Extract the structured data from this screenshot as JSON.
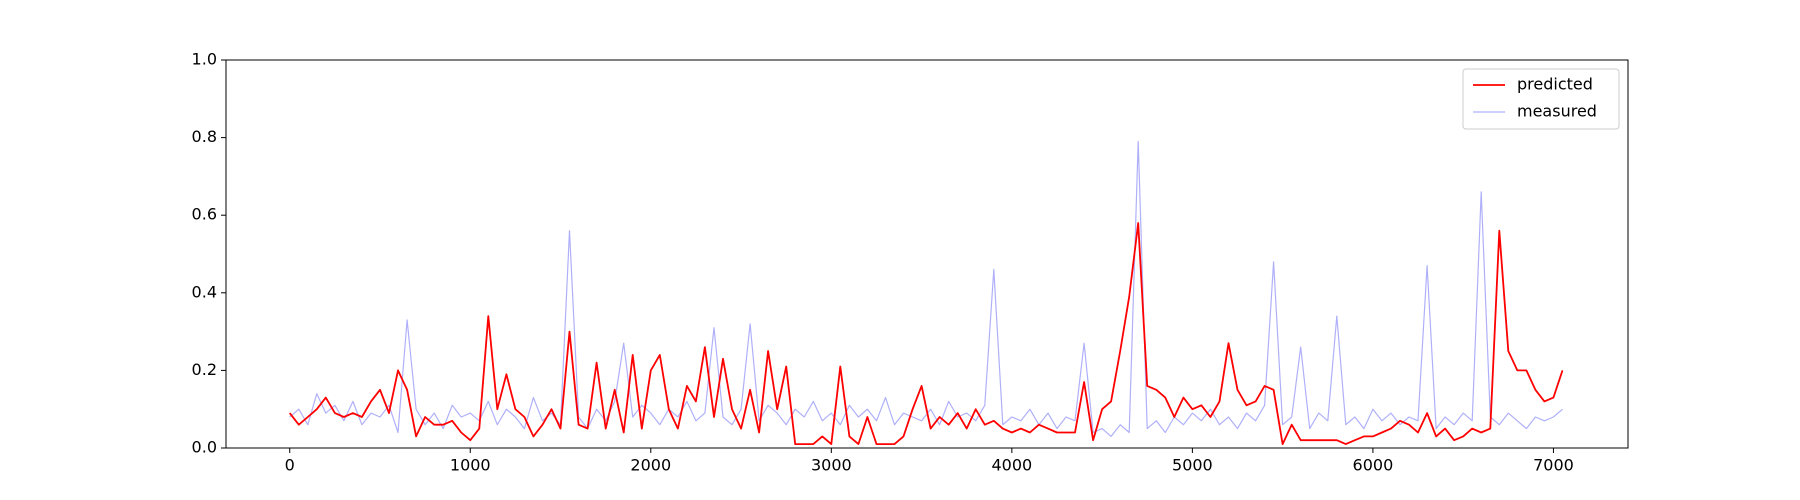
{
  "chart_data": {
    "type": "line",
    "x": [
      0,
      50,
      100,
      150,
      200,
      250,
      300,
      350,
      400,
      450,
      500,
      550,
      600,
      650,
      700,
      750,
      800,
      850,
      900,
      950,
      1000,
      1050,
      1100,
      1150,
      1200,
      1250,
      1300,
      1350,
      1400,
      1450,
      1500,
      1550,
      1600,
      1650,
      1700,
      1750,
      1800,
      1850,
      1900,
      1950,
      2000,
      2050,
      2100,
      2150,
      2200,
      2250,
      2300,
      2350,
      2400,
      2450,
      2500,
      2550,
      2600,
      2650,
      2700,
      2750,
      2800,
      2850,
      2900,
      2950,
      3000,
      3050,
      3100,
      3150,
      3200,
      3250,
      3300,
      3350,
      3400,
      3450,
      3500,
      3550,
      3600,
      3650,
      3700,
      3750,
      3800,
      3850,
      3900,
      3950,
      4000,
      4050,
      4100,
      4150,
      4200,
      4250,
      4300,
      4350,
      4400,
      4450,
      4500,
      4550,
      4600,
      4650,
      4700,
      4750,
      4800,
      4850,
      4900,
      4950,
      5000,
      5050,
      5100,
      5150,
      5200,
      5250,
      5300,
      5350,
      5400,
      5450,
      5500,
      5550,
      5600,
      5650,
      5700,
      5750,
      5800,
      5850,
      5900,
      5950,
      6000,
      6050,
      6100,
      6150,
      6200,
      6250,
      6300,
      6350,
      6400,
      6450,
      6500,
      6550,
      6600,
      6650,
      6700,
      6750,
      6800,
      6850,
      6900,
      6950,
      7000,
      7050
    ],
    "series": [
      {
        "name": "predicted",
        "color": "#ff0000",
        "width": 1.8,
        "values": [
          0.09,
          0.06,
          0.08,
          0.1,
          0.13,
          0.09,
          0.08,
          0.09,
          0.08,
          0.12,
          0.15,
          0.09,
          0.2,
          0.15,
          0.03,
          0.08,
          0.06,
          0.06,
          0.07,
          0.04,
          0.02,
          0.05,
          0.34,
          0.1,
          0.19,
          0.1,
          0.08,
          0.03,
          0.06,
          0.1,
          0.05,
          0.3,
          0.06,
          0.05,
          0.22,
          0.05,
          0.15,
          0.04,
          0.24,
          0.05,
          0.2,
          0.24,
          0.1,
          0.05,
          0.16,
          0.12,
          0.26,
          0.08,
          0.23,
          0.1,
          0.05,
          0.15,
          0.04,
          0.25,
          0.1,
          0.21,
          0.01,
          0.01,
          0.01,
          0.03,
          0.01,
          0.21,
          0.03,
          0.01,
          0.08,
          0.01,
          0.01,
          0.01,
          0.03,
          0.1,
          0.16,
          0.05,
          0.08,
          0.06,
          0.09,
          0.05,
          0.1,
          0.06,
          0.07,
          0.05,
          0.04,
          0.05,
          0.04,
          0.06,
          0.05,
          0.04,
          0.04,
          0.04,
          0.17,
          0.02,
          0.1,
          0.12,
          0.25,
          0.39,
          0.58,
          0.16,
          0.15,
          0.13,
          0.08,
          0.13,
          0.1,
          0.11,
          0.08,
          0.12,
          0.27,
          0.15,
          0.11,
          0.12,
          0.16,
          0.15,
          0.01,
          0.06,
          0.02,
          0.02,
          0.02,
          0.02,
          0.02,
          0.01,
          0.02,
          0.03,
          0.03,
          0.04,
          0.05,
          0.07,
          0.06,
          0.04,
          0.09,
          0.03,
          0.05,
          0.02,
          0.03,
          0.05,
          0.04,
          0.05,
          0.56,
          0.25,
          0.2,
          0.2,
          0.15,
          0.12,
          0.13,
          0.2
        ]
      },
      {
        "name": "measured",
        "color": "#b0b0fa",
        "width": 1.2,
        "values": [
          0.08,
          0.1,
          0.06,
          0.14,
          0.09,
          0.11,
          0.07,
          0.12,
          0.06,
          0.09,
          0.08,
          0.11,
          0.04,
          0.33,
          0.1,
          0.06,
          0.09,
          0.05,
          0.11,
          0.08,
          0.09,
          0.07,
          0.12,
          0.06,
          0.1,
          0.08,
          0.05,
          0.13,
          0.07,
          0.09,
          0.06,
          0.56,
          0.08,
          0.05,
          0.1,
          0.07,
          0.12,
          0.27,
          0.08,
          0.11,
          0.09,
          0.06,
          0.1,
          0.08,
          0.12,
          0.07,
          0.09,
          0.31,
          0.08,
          0.06,
          0.1,
          0.32,
          0.07,
          0.11,
          0.09,
          0.06,
          0.1,
          0.08,
          0.12,
          0.07,
          0.09,
          0.06,
          0.11,
          0.08,
          0.1,
          0.07,
          0.13,
          0.06,
          0.09,
          0.08,
          0.07,
          0.1,
          0.06,
          0.12,
          0.08,
          0.09,
          0.07,
          0.11,
          0.46,
          0.06,
          0.08,
          0.07,
          0.1,
          0.06,
          0.09,
          0.05,
          0.08,
          0.07,
          0.27,
          0.04,
          0.05,
          0.03,
          0.06,
          0.04,
          0.79,
          0.05,
          0.07,
          0.04,
          0.08,
          0.06,
          0.09,
          0.07,
          0.1,
          0.06,
          0.08,
          0.05,
          0.09,
          0.07,
          0.11,
          0.48,
          0.06,
          0.08,
          0.26,
          0.05,
          0.09,
          0.07,
          0.34,
          0.06,
          0.08,
          0.05,
          0.1,
          0.07,
          0.09,
          0.06,
          0.08,
          0.07,
          0.47,
          0.05,
          0.08,
          0.06,
          0.09,
          0.07,
          0.66,
          0.08,
          0.06,
          0.09,
          0.07,
          0.05,
          0.08,
          0.07,
          0.08,
          0.1
        ]
      }
    ],
    "xlim": [
      -353,
      7413
    ],
    "xticks": [
      0,
      1000,
      2000,
      3000,
      4000,
      5000,
      6000,
      7000
    ],
    "ylim": [
      0,
      1
    ],
    "yticks": [
      {
        "value": 0,
        "label": "0.0"
      },
      0.2,
      0.4,
      0.6,
      0.8,
      {
        "value": 1,
        "label": "1.0"
      }
    ],
    "legend": "upper right"
  }
}
